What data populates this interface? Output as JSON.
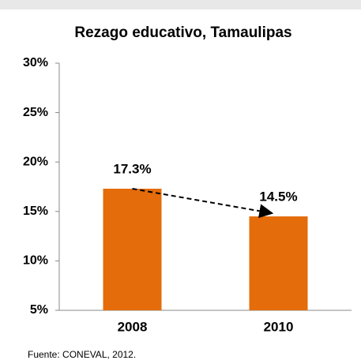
{
  "chart_data": {
    "type": "bar",
    "title": "Rezago educativo, Tamaulipas",
    "categories": [
      "2008",
      "2010"
    ],
    "values": [
      17.3,
      14.5
    ],
    "value_labels": [
      "17.3%",
      "14.5%"
    ],
    "color": "#e46c0a",
    "ylim": [
      5,
      30
    ],
    "yticks": [
      {
        "value": 5,
        "label": "5%"
      },
      {
        "value": 10,
        "label": "10%"
      },
      {
        "value": 15,
        "label": "15%"
      },
      {
        "value": 20,
        "label": "20%"
      },
      {
        "value": 25,
        "label": "25%"
      },
      {
        "value": 30,
        "label": "30%"
      }
    ],
    "grid": false,
    "source": "Fuente: CONEVAL, 2012."
  }
}
